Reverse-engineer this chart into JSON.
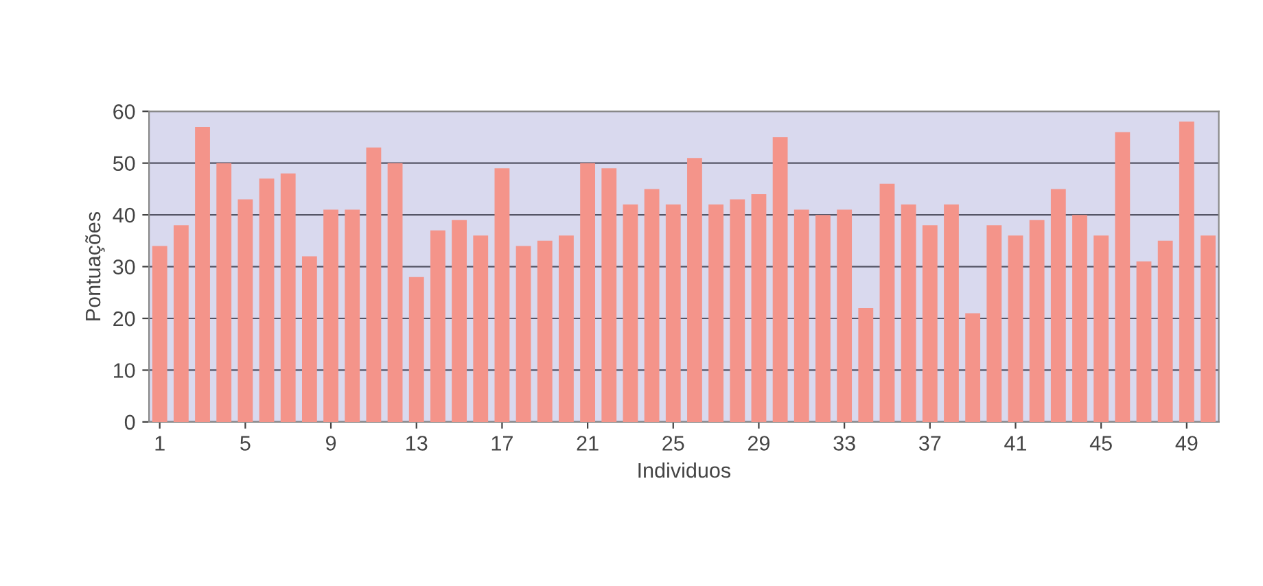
{
  "chart_data": {
    "type": "bar",
    "xlabel": "Individuos",
    "ylabel": "Pontuações",
    "categories": [
      "1",
      null,
      null,
      null,
      "5",
      null,
      null,
      null,
      "9",
      null,
      null,
      null,
      "13",
      null,
      null,
      null,
      "17",
      null,
      null,
      null,
      "21",
      null,
      null,
      null,
      "25",
      null,
      null,
      null,
      "29",
      null,
      null,
      null,
      "33",
      null,
      null,
      null,
      "37",
      null,
      null,
      null,
      "41",
      null,
      null,
      null,
      "45",
      null,
      null,
      null,
      "49",
      null
    ],
    "values": [
      34,
      38,
      57,
      50,
      43,
      47,
      48,
      32,
      41,
      41,
      53,
      50,
      28,
      37,
      39,
      36,
      49,
      34,
      35,
      36,
      50,
      49,
      42,
      45,
      42,
      51,
      42,
      43,
      44,
      55,
      41,
      40,
      41,
      22,
      46,
      42,
      38,
      42,
      21,
      38,
      36,
      39,
      45,
      40,
      36,
      56,
      31,
      35,
      58,
      36
    ],
    "color": "#f4948a",
    "ylim": [
      0,
      60
    ],
    "yticks": [
      0,
      10,
      20,
      30,
      40,
      50,
      60
    ],
    "grid": "y"
  }
}
